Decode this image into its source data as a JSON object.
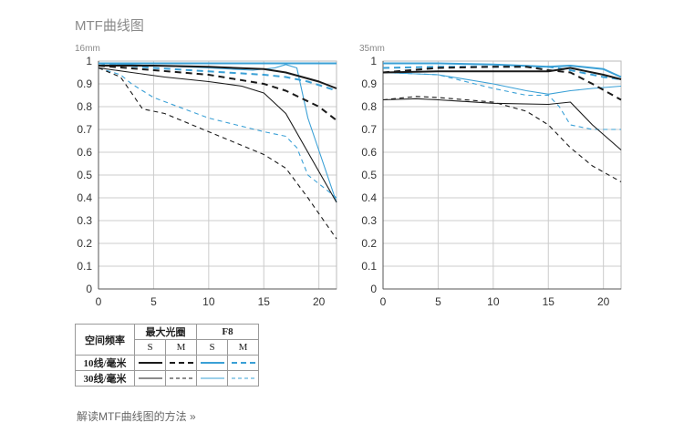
{
  "page": {
    "title": "MTF曲线图",
    "help_link": "解读MTF曲线图的方法 »"
  },
  "legend": {
    "row_header": "空间频率",
    "group_max_aperture": "最大光圈",
    "group_f8": "F8",
    "col_s": "S",
    "col_m": "M",
    "row_10": "10线/毫米",
    "row_30": "30线/毫米"
  },
  "colors": {
    "max_aperture": "#1a1a1a",
    "f8": "#3aa0d6",
    "grid": "#cccccc",
    "axis": "#555555"
  },
  "chart_data": [
    {
      "type": "line",
      "title": "16mm",
      "xlim": [
        0,
        21.6
      ],
      "ylim": [
        0,
        1
      ],
      "xticks": [
        0,
        5,
        10,
        15,
        20
      ],
      "yticks": [
        0,
        0.1,
        0.2,
        0.3,
        0.4,
        0.5,
        0.6,
        0.7,
        0.8,
        0.9,
        1
      ],
      "grid": true,
      "series": [
        {
          "group": "max_aperture",
          "freq": "10",
          "line": "S",
          "x": [
            0,
            5,
            10,
            15,
            17,
            20,
            21.6
          ],
          "y": [
            0.98,
            0.98,
            0.975,
            0.965,
            0.95,
            0.91,
            0.88
          ]
        },
        {
          "group": "max_aperture",
          "freq": "10",
          "line": "M",
          "x": [
            0,
            5,
            10,
            15,
            17,
            20,
            21.6
          ],
          "y": [
            0.98,
            0.96,
            0.94,
            0.9,
            0.87,
            0.8,
            0.74
          ]
        },
        {
          "group": "max_aperture",
          "freq": "30",
          "line": "S",
          "x": [
            0,
            3,
            6,
            10,
            13,
            15,
            17,
            19,
            21.6
          ],
          "y": [
            0.97,
            0.95,
            0.93,
            0.91,
            0.89,
            0.86,
            0.77,
            0.6,
            0.38
          ]
        },
        {
          "group": "max_aperture",
          "freq": "30",
          "line": "M",
          "x": [
            0,
            2,
            4,
            6,
            10,
            15,
            17,
            19,
            21.6
          ],
          "y": [
            0.97,
            0.93,
            0.79,
            0.77,
            0.69,
            0.59,
            0.53,
            0.4,
            0.22
          ]
        },
        {
          "group": "f8",
          "freq": "10",
          "line": "S",
          "x": [
            0,
            5,
            10,
            15,
            17,
            18,
            21.6
          ],
          "y": [
            0.99,
            0.99,
            0.99,
            0.99,
            0.99,
            0.99,
            0.99
          ]
        },
        {
          "group": "f8",
          "freq": "10",
          "line": "M",
          "x": [
            0,
            5,
            10,
            15,
            17,
            19,
            21.6
          ],
          "y": [
            0.99,
            0.97,
            0.955,
            0.94,
            0.93,
            0.91,
            0.87
          ]
        },
        {
          "group": "f8",
          "freq": "30",
          "line": "S",
          "x": [
            0,
            5,
            10,
            14,
            16,
            17,
            18,
            19,
            21.6
          ],
          "y": [
            0.99,
            0.98,
            0.97,
            0.96,
            0.97,
            0.985,
            0.97,
            0.75,
            0.38
          ]
        },
        {
          "group": "f8",
          "freq": "30",
          "line": "M",
          "x": [
            0,
            2,
            3,
            5,
            10,
            15,
            17,
            18,
            19,
            21.6
          ],
          "y": [
            0.97,
            0.94,
            0.9,
            0.84,
            0.75,
            0.69,
            0.67,
            0.62,
            0.5,
            0.4
          ]
        }
      ]
    },
    {
      "type": "line",
      "title": "35mm",
      "xlim": [
        0,
        21.6
      ],
      "ylim": [
        0,
        1
      ],
      "xticks": [
        0,
        5,
        10,
        15,
        20
      ],
      "yticks": [
        0,
        0.1,
        0.2,
        0.3,
        0.4,
        0.5,
        0.6,
        0.7,
        0.8,
        0.9,
        1
      ],
      "grid": true,
      "series": [
        {
          "group": "max_aperture",
          "freq": "10",
          "line": "S",
          "x": [
            0,
            5,
            10,
            15,
            17,
            20,
            21.6
          ],
          "y": [
            0.95,
            0.955,
            0.955,
            0.955,
            0.97,
            0.94,
            0.92
          ]
        },
        {
          "group": "max_aperture",
          "freq": "10",
          "line": "M",
          "x": [
            0,
            5,
            10,
            13,
            15,
            17,
            19,
            21.6
          ],
          "y": [
            0.95,
            0.97,
            0.975,
            0.975,
            0.96,
            0.95,
            0.9,
            0.83
          ]
        },
        {
          "group": "max_aperture",
          "freq": "30",
          "line": "S",
          "x": [
            0,
            3,
            5,
            10,
            15,
            17,
            19,
            21.6
          ],
          "y": [
            0.83,
            0.835,
            0.83,
            0.815,
            0.81,
            0.82,
            0.72,
            0.61
          ]
        },
        {
          "group": "max_aperture",
          "freq": "30",
          "line": "M",
          "x": [
            0,
            3,
            5,
            10,
            13,
            15,
            17,
            19,
            21.6
          ],
          "y": [
            0.83,
            0.845,
            0.84,
            0.82,
            0.78,
            0.72,
            0.62,
            0.54,
            0.47
          ]
        },
        {
          "group": "f8",
          "freq": "10",
          "line": "S",
          "x": [
            0,
            5,
            10,
            15,
            17,
            20,
            21.6
          ],
          "y": [
            0.99,
            0.99,
            0.985,
            0.975,
            0.98,
            0.965,
            0.93
          ]
        },
        {
          "group": "f8",
          "freq": "10",
          "line": "M",
          "x": [
            0,
            5,
            10,
            15,
            17,
            20,
            21.6
          ],
          "y": [
            0.97,
            0.975,
            0.975,
            0.975,
            0.96,
            0.93,
            0.92
          ]
        },
        {
          "group": "f8",
          "freq": "30",
          "line": "S",
          "x": [
            0,
            5,
            10,
            13,
            15,
            17,
            19,
            21.6
          ],
          "y": [
            0.95,
            0.94,
            0.9,
            0.87,
            0.855,
            0.87,
            0.88,
            0.89
          ]
        },
        {
          "group": "f8",
          "freq": "30",
          "line": "M",
          "x": [
            0,
            5,
            10,
            13,
            15,
            16,
            17,
            19,
            21.6
          ],
          "y": [
            0.95,
            0.94,
            0.88,
            0.85,
            0.85,
            0.8,
            0.72,
            0.7,
            0.7
          ]
        }
      ]
    }
  ]
}
